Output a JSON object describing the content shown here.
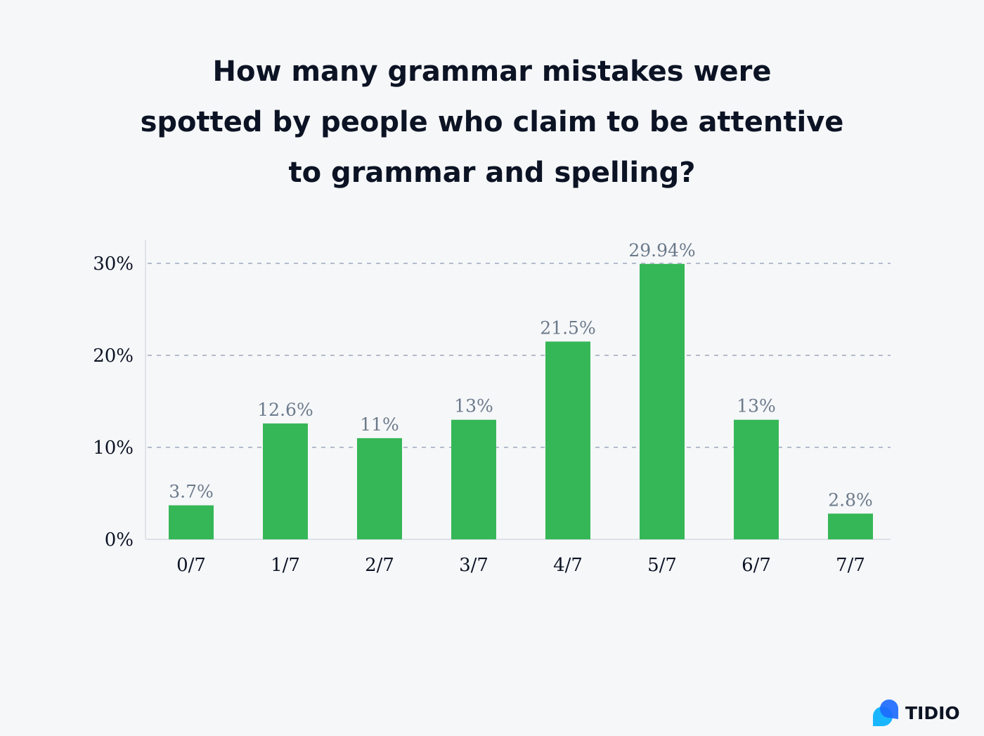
{
  "chart_data": {
    "type": "bar",
    "title_lines": [
      "How many grammar mistakes were",
      "spotted by people who claim to be attentive",
      "to grammar and spelling?"
    ],
    "categories": [
      "0/7",
      "1/7",
      "2/7",
      "3/7",
      "4/7",
      "5/7",
      "6/7",
      "7/7"
    ],
    "values": [
      3.7,
      12.6,
      11,
      13,
      21.5,
      29.94,
      13,
      2.8
    ],
    "data_labels": [
      "3.7%",
      "12.6%",
      "11%",
      "13%",
      "21.5%",
      "29.94%",
      "13%",
      "2.8%"
    ],
    "yticks": [
      0,
      10,
      20,
      30
    ],
    "ytick_labels": [
      "0%",
      "10%",
      "20%",
      "30%"
    ],
    "ylim": [
      0,
      32.5
    ],
    "grid": "horizontal dashed",
    "bar_color": "#36b757",
    "xlabel": "",
    "ylabel": ""
  },
  "brand": {
    "name": "TIDIO"
  }
}
